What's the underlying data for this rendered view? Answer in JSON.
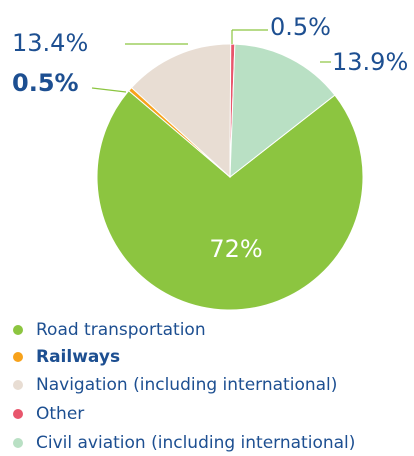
{
  "chart_data": {
    "type": "pie",
    "categories": [
      "Road transportation",
      "Railways",
      "Navigation (including international)",
      "Other",
      "Civil aviation (including international)"
    ],
    "values": [
      72,
      0.5,
      13.4,
      0.5,
      13.9
    ],
    "value_labels": [
      "72%",
      "0.5%",
      "13.4%",
      "0.5%",
      "13.9%"
    ],
    "colors": [
      "#8cc540",
      "#f7a21b",
      "#e8ddd3",
      "#e8566c",
      "#b9e0c4"
    ]
  }
}
